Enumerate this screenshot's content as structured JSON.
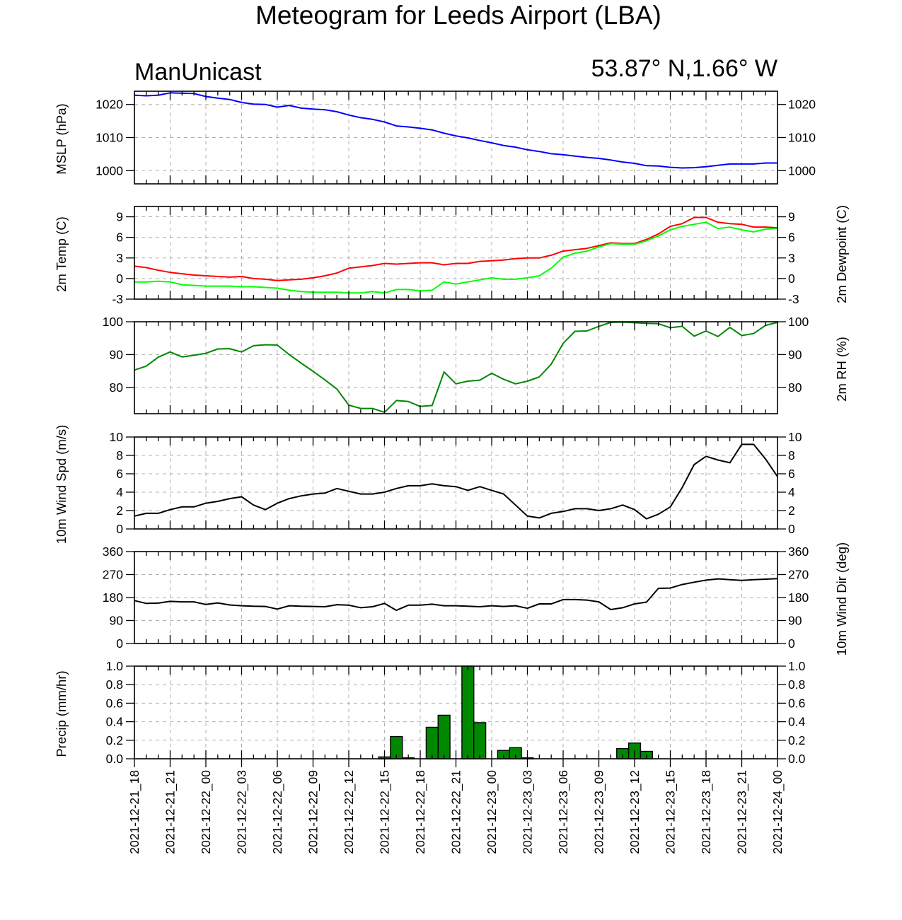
{
  "header": {
    "title": "Meteogram for Leeds Airport (LBA)",
    "model": "ManUnicast",
    "location": "53.87° N,1.66° W"
  },
  "x_axis": {
    "labels": [
      "2021-12-21_18",
      "2021-12-21_21",
      "2021-12-22_00",
      "2021-12-22_03",
      "2021-12-22_06",
      "2021-12-22_09",
      "2021-12-22_12",
      "2021-12-22_15",
      "2021-12-22_18",
      "2021-12-22_21",
      "2021-12-23_00",
      "2021-12-23_03",
      "2021-12-23_06",
      "2021-12-23_09",
      "2021-12-23_12",
      "2021-12-23_15",
      "2021-12-23_18",
      "2021-12-23_21",
      "2021-12-24_00"
    ],
    "hours_per_label": 3
  },
  "chart_data": [
    {
      "type": "line",
      "name": "mslp",
      "ylabel": "MSLP (hPa)",
      "ylim": [
        996,
        1024
      ],
      "yticks": [
        1000,
        1010,
        1020
      ],
      "right_ticks": true,
      "grid": true,
      "series": [
        {
          "color": "#0000ff",
          "values": [
            1022.8,
            1022.6,
            1022.8,
            1023.5,
            1023.4,
            1023.3,
            1022.4,
            1021.9,
            1021.5,
            1020.6,
            1020.1,
            1020.0,
            1019.2,
            1019.7,
            1018.9,
            1018.6,
            1018.4,
            1017.8,
            1016.8,
            1016.0,
            1015.5,
            1014.7,
            1013.5,
            1013.2,
            1012.8,
            1012.3,
            1011.3,
            1010.5,
            1009.9,
            1009.1,
            1008.4,
            1007.6,
            1007.1,
            1006.3,
            1005.8,
            1005.1,
            1004.8,
            1004.4,
            1004.0,
            1003.7,
            1003.2,
            1002.6,
            1002.2,
            1001.5,
            1001.4,
            1001.0,
            1000.8,
            1000.9,
            1001.2,
            1001.6,
            1002.0,
            1002.0,
            1002.0,
            1002.3,
            1002.3
          ]
        }
      ]
    },
    {
      "type": "line",
      "name": "temperature",
      "ylabel": "2m Temp (C)",
      "ylabel_right": "2m Dewpoint (C)",
      "ylim": [
        -3,
        10.5
      ],
      "yticks": [
        -3,
        0,
        3,
        6,
        9
      ],
      "right_ticks": true,
      "grid": true,
      "series": [
        {
          "color": "#ff0000",
          "values": [
            1.8,
            1.6,
            1.2,
            0.9,
            0.7,
            0.5,
            0.4,
            0.3,
            0.2,
            0.3,
            0.0,
            -0.1,
            -0.3,
            -0.2,
            -0.1,
            0.1,
            0.4,
            0.8,
            1.5,
            1.7,
            1.9,
            2.2,
            2.1,
            2.2,
            2.3,
            2.3,
            2.0,
            2.2,
            2.2,
            2.5,
            2.6,
            2.7,
            2.9,
            3.0,
            3.0,
            3.4,
            4.0,
            4.2,
            4.4,
            4.8,
            5.2,
            5.1,
            5.1,
            5.7,
            6.5,
            7.6,
            8.0,
            8.9,
            8.9,
            8.2,
            8.0,
            7.9,
            7.5,
            7.5,
            7.4
          ]
        },
        {
          "color": "#00ff00",
          "values": [
            -0.5,
            -0.5,
            -0.4,
            -0.5,
            -0.9,
            -1.0,
            -1.1,
            -1.1,
            -1.1,
            -1.2,
            -1.2,
            -1.3,
            -1.4,
            -1.7,
            -1.9,
            -2.0,
            -2.0,
            -2.0,
            -2.1,
            -2.1,
            -1.9,
            -2.1,
            -1.6,
            -1.6,
            -1.8,
            -1.7,
            -0.5,
            -0.8,
            -0.5,
            -0.2,
            0.1,
            -0.1,
            -0.1,
            0.1,
            0.4,
            1.5,
            3.1,
            3.7,
            4.0,
            4.6,
            5.1,
            5.0,
            5.0,
            5.5,
            6.2,
            7.1,
            7.6,
            7.9,
            8.2,
            7.3,
            7.5,
            7.1,
            6.8,
            7.2,
            7.3
          ]
        }
      ]
    },
    {
      "type": "line",
      "name": "humidity",
      "ylabel": "",
      "ylabel_right": "2m RH (%)",
      "ylim": [
        72,
        100
      ],
      "yticks": [
        80,
        90,
        100
      ],
      "right_ticks": true,
      "grid": true,
      "series": [
        {
          "color": "#008800",
          "values": [
            85.3,
            86.5,
            89.2,
            90.8,
            89.3,
            89.8,
            90.4,
            91.7,
            91.8,
            90.8,
            92.7,
            93.0,
            92.9,
            90.0,
            87.4,
            84.9,
            82.3,
            79.5,
            74.6,
            73.6,
            73.6,
            72.4,
            76.0,
            75.7,
            74.2,
            74.5,
            84.7,
            81.1,
            81.9,
            82.2,
            84.3,
            82.5,
            81.1,
            81.9,
            83.2,
            87.1,
            93.4,
            97.1,
            97.2,
            98.6,
            99.8,
            99.9,
            99.7,
            99.5,
            99.4,
            98.2,
            98.6,
            95.6,
            97.2,
            95.5,
            98.3,
            95.8,
            96.4,
            98.9,
            99.8
          ]
        }
      ]
    },
    {
      "type": "line",
      "name": "wind_speed",
      "ylabel": "10m Wind Spd (m/s)",
      "ylim": [
        0,
        10
      ],
      "yticks": [
        0,
        2,
        4,
        6,
        8,
        10
      ],
      "right_ticks": true,
      "grid": true,
      "series": [
        {
          "color": "#000000",
          "values": [
            1.4,
            1.7,
            1.7,
            2.1,
            2.4,
            2.4,
            2.8,
            3.0,
            3.3,
            3.5,
            2.6,
            2.1,
            2.8,
            3.3,
            3.6,
            3.8,
            3.9,
            4.4,
            4.1,
            3.8,
            3.8,
            4.0,
            4.4,
            4.7,
            4.7,
            4.9,
            4.7,
            4.6,
            4.2,
            4.6,
            4.2,
            3.8,
            2.6,
            1.4,
            1.2,
            1.7,
            1.9,
            2.2,
            2.2,
            2.0,
            2.2,
            2.6,
            2.1,
            1.1,
            1.6,
            2.4,
            4.5,
            7.0,
            7.9,
            7.5,
            7.2,
            9.2,
            9.2,
            7.6,
            5.7
          ]
        }
      ]
    },
    {
      "type": "line",
      "name": "wind_direction",
      "ylabel": "",
      "ylabel_right": "10m Wind Dir (deg)",
      "ylim": [
        0,
        360
      ],
      "yticks": [
        0,
        90,
        180,
        270,
        360
      ],
      "right_ticks": true,
      "grid": true,
      "series": [
        {
          "color": "#000000",
          "values": [
            168,
            157,
            158,
            165,
            163,
            163,
            153,
            159,
            151,
            148,
            146,
            145,
            135,
            148,
            146,
            145,
            144,
            152,
            150,
            140,
            144,
            157,
            130,
            150,
            150,
            154,
            148,
            148,
            146,
            144,
            148,
            145,
            148,
            138,
            155,
            155,
            172,
            172,
            170,
            163,
            133,
            140,
            155,
            162,
            216,
            217,
            231,
            240,
            248,
            253,
            250,
            247,
            250,
            252,
            254
          ]
        }
      ]
    },
    {
      "type": "bar",
      "name": "precipitation",
      "ylabel": "Precip (mm/hr)",
      "ylim": [
        0,
        1.0
      ],
      "yticks": [
        0.0,
        0.2,
        0.4,
        0.6,
        0.8,
        1.0
      ],
      "ytick_labels": [
        "0.0",
        "0.2",
        "0.4",
        "0.6",
        "0.8",
        "1.0"
      ],
      "right_ticks": true,
      "grid": true,
      "bar_color": "#008800",
      "series": [
        {
          "values": [
            0,
            0,
            0,
            0,
            0,
            0,
            0,
            0,
            0,
            0,
            0,
            0,
            0,
            0,
            0,
            0,
            0,
            0,
            0,
            0,
            0,
            0.02,
            0.24,
            0.01,
            0,
            0.34,
            0.47,
            0,
            1.0,
            0.39,
            0,
            0.09,
            0.12,
            0.01,
            0,
            0,
            0,
            0,
            0,
            0,
            0,
            0.11,
            0.17,
            0.08,
            0,
            0,
            0,
            0,
            0,
            0,
            0,
            0,
            0,
            0,
            0
          ]
        }
      ]
    }
  ]
}
